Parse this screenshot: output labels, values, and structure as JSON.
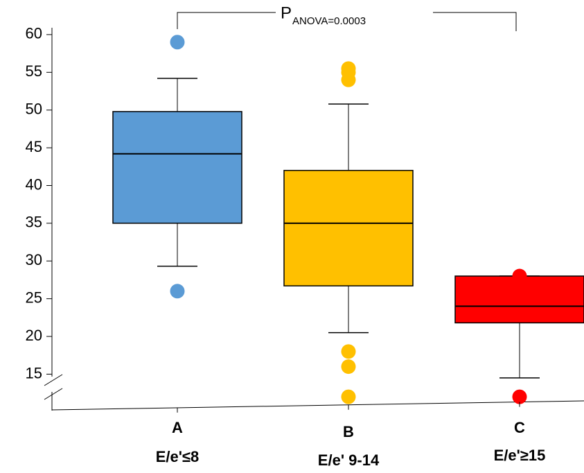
{
  "chart_data": {
    "type": "box",
    "annotation": {
      "main": "P",
      "sub": "ANOVA=0.0003"
    },
    "categories": [
      "A",
      "B",
      "C"
    ],
    "category_descriptions": [
      "E/e'≤8",
      "E/e' 9-14",
      "E/e'≥15"
    ],
    "boxes": [
      {
        "color": "#5b9bd5",
        "whisker_low": 29.3,
        "q1": 35,
        "median": 44.2,
        "q3": 49.8,
        "whisker_high": 54.2,
        "outliers": [
          59,
          26
        ]
      },
      {
        "color": "#ffc000",
        "whisker_low": 20.5,
        "q1": 26.7,
        "median": 35,
        "q3": 42,
        "whisker_high": 50.8,
        "outliers": [
          55.5,
          55,
          54,
          18,
          16,
          12
        ]
      },
      {
        "color": "#ff0000",
        "whisker_low": 14.5,
        "q1": 21.8,
        "median": 24,
        "q3": 28,
        "whisker_high": 28,
        "outliers": [
          28,
          12
        ]
      }
    ],
    "ylim": [
      11,
      61
    ],
    "yticks": [
      15,
      20,
      25,
      30,
      35,
      40,
      45,
      50,
      55,
      60
    ]
  }
}
